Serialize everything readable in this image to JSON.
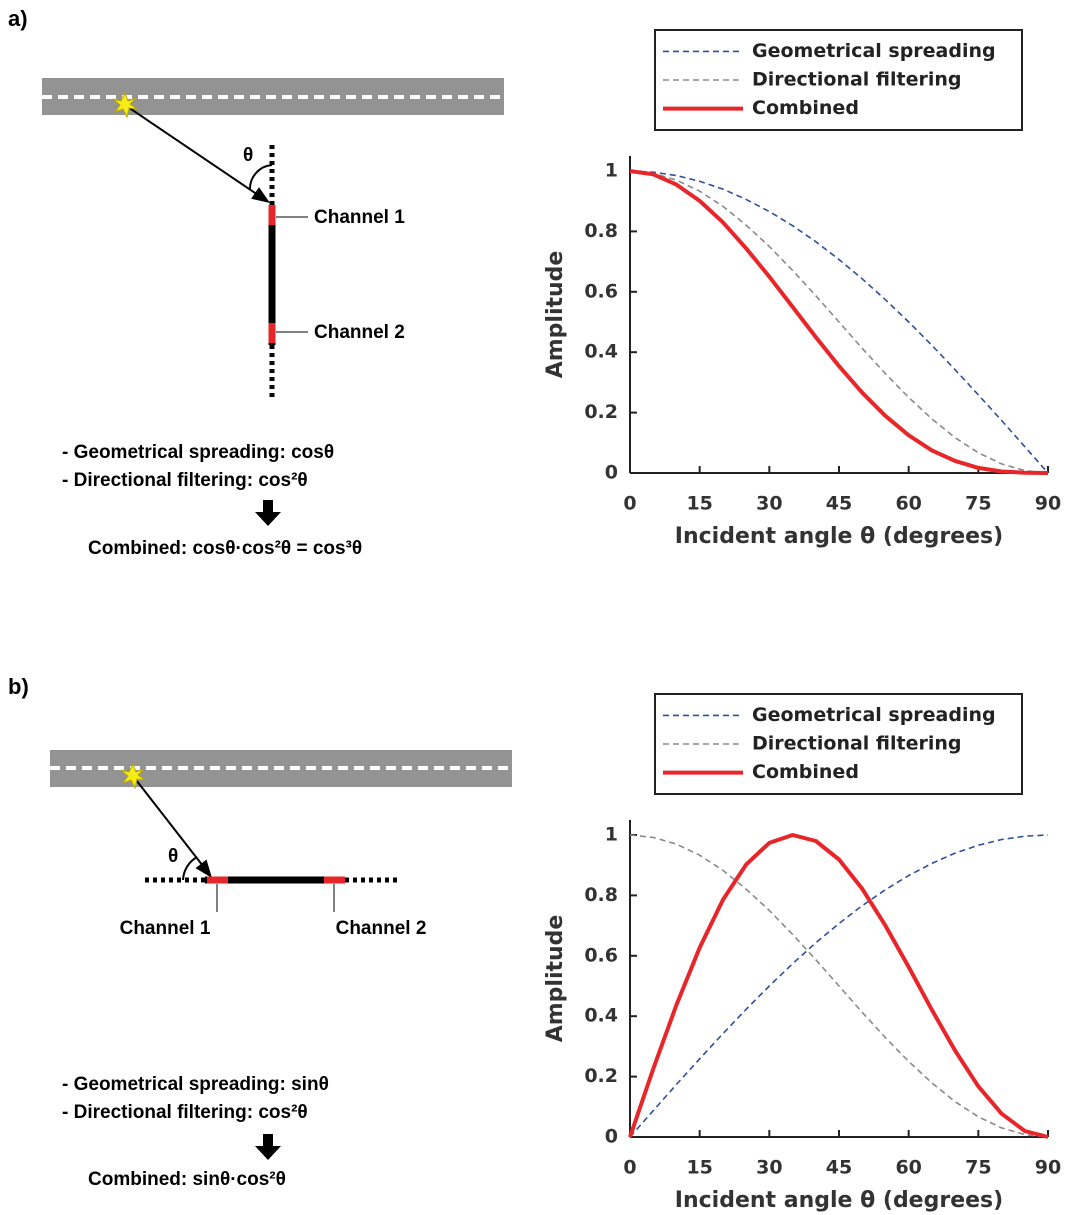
{
  "panels": [
    {
      "label": "a)",
      "channels": [
        "Channel 1",
        "Channel 2"
      ],
      "angle": "θ",
      "notes": [
        "- Geometrical spreading: cosθ",
        "- Directional filtering: cos²θ"
      ],
      "result": "Combined: cosθ·cos²θ = cos³θ"
    },
    {
      "label": "b)",
      "channels": [
        "Channel 1",
        "Channel 2"
      ],
      "angle": "θ",
      "notes": [
        "- Geometrical spreading: sinθ",
        "- Directional filtering: cos²θ"
      ],
      "result": "Combined: sinθ·cos²θ"
    }
  ],
  "chart_data": [
    {
      "type": "line",
      "xlabel": "Incident angle θ (degrees)",
      "ylabel": "Amplitude",
      "legend": "above",
      "x": [
        0,
        5,
        10,
        15,
        20,
        25,
        30,
        35,
        40,
        45,
        50,
        55,
        60,
        65,
        70,
        75,
        80,
        85,
        90
      ],
      "xlim": [
        0,
        90
      ],
      "xticks": [
        0,
        15,
        30,
        45,
        60,
        75,
        90
      ],
      "ylim": [
        0,
        1.05
      ],
      "yticks": [
        0,
        0.2,
        0.4,
        0.6,
        0.8,
        1
      ],
      "series": [
        {
          "name": "Geometrical spreading",
          "color": "#2f4f9e",
          "style": "dashed",
          "values": [
            1,
            0.996,
            0.985,
            0.966,
            0.94,
            0.906,
            0.866,
            0.819,
            0.766,
            0.707,
            0.643,
            0.574,
            0.5,
            0.423,
            0.342,
            0.259,
            0.174,
            0.087,
            0
          ]
        },
        {
          "name": "Directional filtering",
          "color": "#8a8a8a",
          "style": "dashed",
          "values": [
            1,
            0.992,
            0.97,
            0.933,
            0.883,
            0.821,
            0.75,
            0.671,
            0.587,
            0.5,
            0.413,
            0.329,
            0.25,
            0.179,
            0.117,
            0.067,
            0.03,
            0.008,
            0
          ]
        },
        {
          "name": "Combined",
          "color": "#e8262a",
          "style": "solid",
          "values": [
            1,
            0.989,
            0.955,
            0.901,
            0.83,
            0.744,
            0.65,
            0.55,
            0.45,
            0.354,
            0.266,
            0.189,
            0.125,
            0.075,
            0.04,
            0.017,
            0.005,
            0.001,
            0
          ]
        }
      ]
    },
    {
      "type": "line",
      "xlabel": "Incident angle θ (degrees)",
      "ylabel": "Amplitude",
      "legend": "above",
      "x": [
        0,
        5,
        10,
        15,
        20,
        25,
        30,
        35,
        40,
        45,
        50,
        55,
        60,
        65,
        70,
        75,
        80,
        85,
        90
      ],
      "xlim": [
        0,
        90
      ],
      "xticks": [
        0,
        15,
        30,
        45,
        60,
        75,
        90
      ],
      "ylim": [
        0,
        1.05
      ],
      "yticks": [
        0,
        0.2,
        0.4,
        0.6,
        0.8,
        1
      ],
      "series": [
        {
          "name": "Geometrical spreading",
          "color": "#2f4f9e",
          "style": "dashed",
          "values": [
            0,
            0.087,
            0.174,
            0.259,
            0.342,
            0.423,
            0.5,
            0.574,
            0.643,
            0.707,
            0.766,
            0.819,
            0.866,
            0.906,
            0.94,
            0.966,
            0.985,
            0.996,
            1
          ]
        },
        {
          "name": "Directional filtering",
          "color": "#8a8a8a",
          "style": "dashed",
          "values": [
            1,
            0.992,
            0.97,
            0.933,
            0.883,
            0.821,
            0.75,
            0.671,
            0.587,
            0.5,
            0.413,
            0.329,
            0.25,
            0.179,
            0.117,
            0.067,
            0.03,
            0.008,
            0
          ]
        },
        {
          "name": "Combined",
          "color": "#e8262a",
          "style": "solid",
          "values": [
            0,
            0.225,
            0.437,
            0.627,
            0.785,
            0.902,
            0.974,
            1,
            0.98,
            0.919,
            0.822,
            0.7,
            0.563,
            0.421,
            0.286,
            0.168,
            0.077,
            0.02,
            0
          ]
        }
      ]
    }
  ]
}
